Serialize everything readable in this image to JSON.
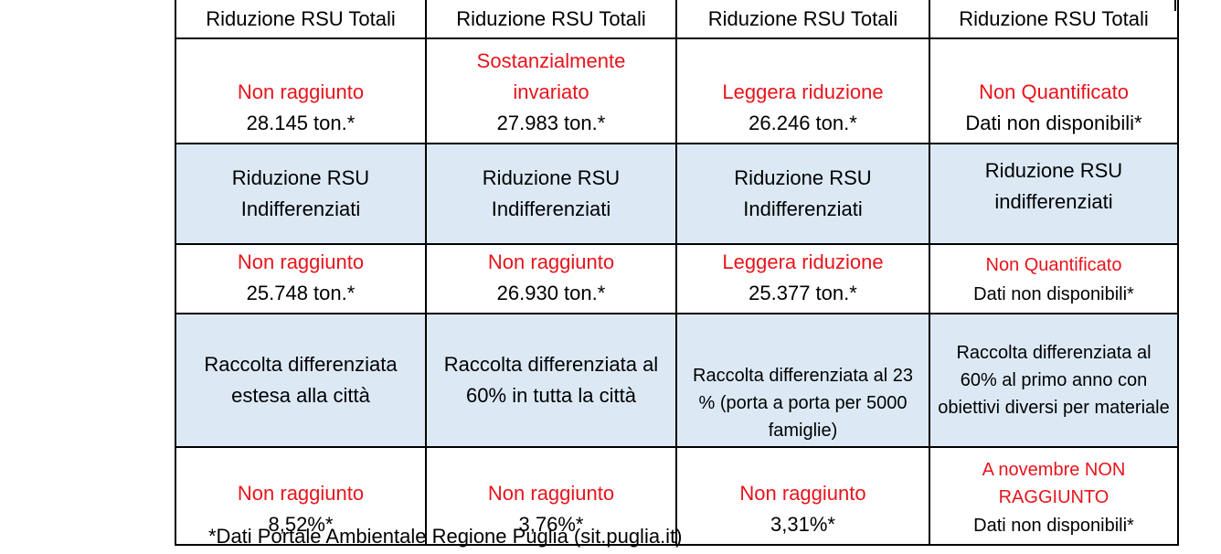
{
  "header": [
    "Riduzione RSU Totali",
    "Riduzione RSU Totali",
    "Riduzione RSU Totali",
    "Riduzione RSU Totali"
  ],
  "row1": [
    {
      "status": "Non raggiunto",
      "value": "28.145 ton.*"
    },
    {
      "status": "Sostanzialmente invariato",
      "value": "27.983 ton.*"
    },
    {
      "status": "Leggera riduzione",
      "value": "26.246 ton.*"
    },
    {
      "status": "Non Quantificato",
      "value": "Dati non disponibili*"
    }
  ],
  "label2": [
    "Riduzione RSU Indifferenziati",
    "Riduzione RSU Indifferenziati",
    "Riduzione RSU Indifferenziati",
    "Riduzione RSU indifferenziati"
  ],
  "row2": [
    {
      "status": "Non raggiunto",
      "value": "25.748 ton.*"
    },
    {
      "status": "Non raggiunto",
      "value": "26.930 ton.*"
    },
    {
      "status": "Leggera riduzione",
      "value": "25.377 ton.*"
    },
    {
      "status": "Non Quantificato",
      "value": "Dati non disponibili*"
    }
  ],
  "label3": [
    "Raccolta differenziata estesa alla città",
    "Raccolta differenziata al 60% in tutta la città",
    "Raccolta differenziata al 23 % (porta a porta per 5000 famiglie)",
    "Raccolta differenziata al 60% al primo anno con obiettivi diversi per materiale"
  ],
  "row3": [
    {
      "status": "Non raggiunto",
      "value": "8,52%*"
    },
    {
      "status": "Non raggiunto",
      "value": "3,76%*"
    },
    {
      "status": "Non raggiunto",
      "value": "3,31%*"
    },
    {
      "status": "A novembre NON RAGGIUNTO",
      "value": "Dati non disponibili*"
    }
  ],
  "footnote": "*Dati Portale Ambientale Regione Puglia (sit.puglia.it)",
  "colors": {
    "status_red": "#e8141c",
    "label_row_bg": "#dce9f5",
    "border": "#000000"
  }
}
